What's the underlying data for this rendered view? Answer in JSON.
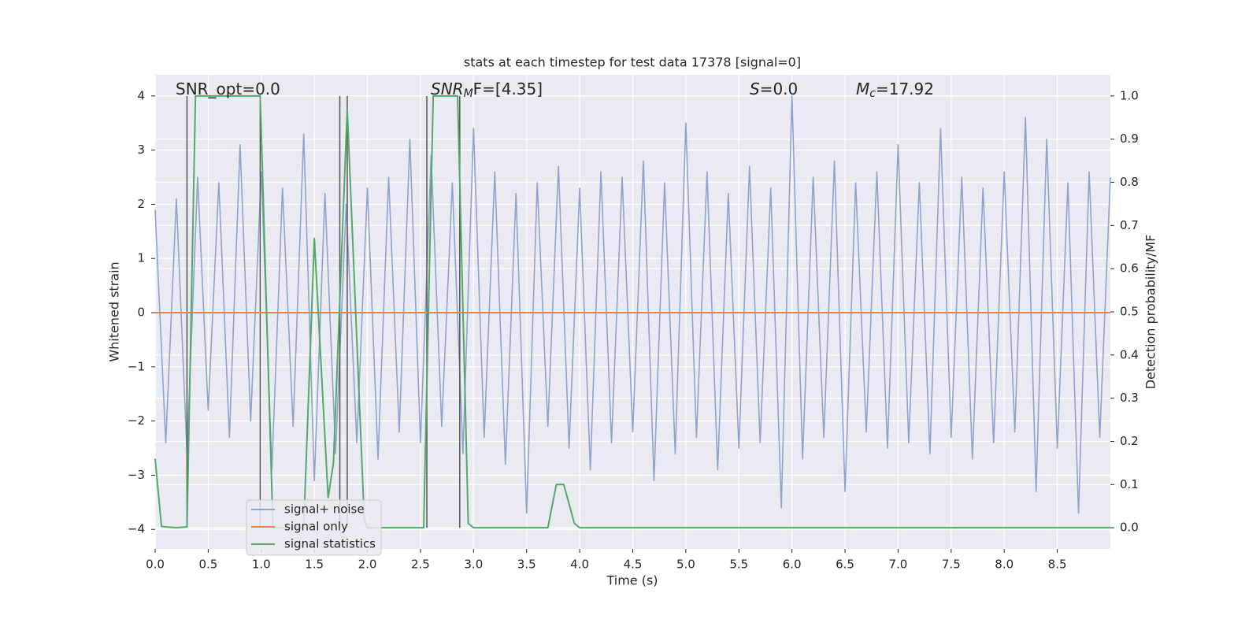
{
  "chart_data": {
    "type": "line",
    "title": "stats at each timestep for test data 17378 [signal=0]",
    "xlabel": "Time (s)",
    "ylabel": "Whitened strain",
    "y2label": "Detection probability/MF",
    "annotations": [
      {
        "text": "SNR_opt=0.0"
      },
      {
        "italic": "SNR",
        "sub": "M",
        "text": "F=[4.35]"
      },
      {
        "italic": "S",
        "text": "=0.0"
      },
      {
        "italic": "M",
        "sub": "c",
        "text": "=17.92"
      }
    ],
    "xlim": [
      0,
      9.0
    ],
    "ylim": [
      -4.36,
      4.39
    ],
    "y2lim": [
      -0.049,
      1.049
    ],
    "xticks": [
      {
        "value": 0,
        "label": "0.0"
      },
      0.5,
      {
        "value": 1,
        "label": "1.0"
      },
      1.5,
      {
        "value": 2,
        "label": "2.0"
      },
      2.5,
      {
        "value": 3,
        "label": "3.0"
      },
      3.5,
      {
        "value": 4,
        "label": "4.0"
      },
      4.5,
      {
        "value": 5,
        "label": "5.0"
      },
      5.5,
      {
        "value": 6,
        "label": "6.0"
      },
      6.5,
      {
        "value": 7,
        "label": "7.0"
      },
      7.5,
      {
        "value": 8,
        "label": "8.0"
      },
      8.5
    ],
    "yticks": [
      {
        "value": -4,
        "label": "−4"
      },
      {
        "value": -3,
        "label": "−3"
      },
      {
        "value": -2,
        "label": "−2"
      },
      {
        "value": -1,
        "label": "−1"
      },
      0,
      1,
      2,
      3,
      4
    ],
    "y2ticks": [
      {
        "value": 0,
        "label": "0.0"
      },
      0.1,
      0.2,
      0.3,
      0.4,
      0.5,
      0.6,
      0.7,
      0.8,
      0.9,
      {
        "value": 1,
        "label": "1.0"
      }
    ],
    "grid": true,
    "legend": "lower left",
    "vlines": [
      0.3,
      0.99,
      1.74,
      1.81,
      2.56,
      2.87
    ],
    "series": [
      {
        "name": "signal+ noise",
        "color": "#8fa3cd",
        "axis": "y",
        "x": [
          0,
          0.1,
          0.2,
          0.3,
          0.4,
          0.5,
          0.6,
          0.7,
          0.8,
          0.9,
          1.0,
          1.1,
          1.2,
          1.3,
          1.4,
          1.5,
          1.6,
          1.7,
          1.8,
          1.9,
          2.0,
          2.1,
          2.2,
          2.3,
          2.4,
          2.5,
          2.6,
          2.7,
          2.8,
          2.9,
          3.0,
          3.1,
          3.2,
          3.3,
          3.4,
          3.5,
          3.6,
          3.7,
          3.8,
          3.9,
          4.0,
          4.1,
          4.2,
          4.3,
          4.4,
          4.5,
          4.6,
          4.7,
          4.8,
          4.9,
          5.0,
          5.1,
          5.2,
          5.3,
          5.4,
          5.5,
          5.6,
          5.7,
          5.8,
          5.9,
          6.0,
          6.1,
          6.2,
          6.3,
          6.4,
          6.5,
          6.6,
          6.7,
          6.8,
          6.9,
          7.0,
          7.1,
          7.2,
          7.3,
          7.4,
          7.5,
          7.6,
          7.7,
          7.8,
          7.9,
          8.0,
          8.1,
          8.2,
          8.3,
          8.4,
          8.5,
          8.6,
          8.7,
          8.8,
          8.9,
          9.0
        ],
        "values": [
          1.9,
          -2.4,
          2.1,
          -2.6,
          2.5,
          -1.8,
          2.4,
          -2.3,
          3.1,
          -2.0,
          2.6,
          -2.9,
          2.3,
          -2.1,
          3.3,
          -3.1,
          2.2,
          -2.6,
          2.0,
          -2.4,
          2.3,
          -2.7,
          2.5,
          -2.2,
          3.2,
          -2.4,
          2.9,
          -2.1,
          2.4,
          -2.6,
          3.4,
          -2.3,
          2.6,
          -2.8,
          2.2,
          -3.7,
          2.4,
          -2.1,
          2.7,
          -2.5,
          2.3,
          -2.9,
          2.6,
          -2.4,
          2.5,
          -2.2,
          2.8,
          -3.1,
          2.4,
          -2.6,
          3.5,
          -2.3,
          2.6,
          -2.9,
          2.2,
          -2.5,
          2.7,
          -2.4,
          2.3,
          -3.6,
          4.0,
          -2.7,
          2.5,
          -2.3,
          2.8,
          -3.3,
          2.4,
          -2.2,
          2.6,
          -2.5,
          3.1,
          -2.4,
          2.4,
          -2.6,
          3.4,
          -2.3,
          2.5,
          -2.7,
          2.3,
          -2.4,
          2.6,
          -2.2,
          3.6,
          -3.3,
          3.2,
          -2.5,
          2.4,
          -3.7,
          2.6,
          -2.3,
          2.5
        ]
      },
      {
        "name": "signal only",
        "color": "#dd8452",
        "axis": "y",
        "x": [
          0,
          9.0
        ],
        "values": [
          0,
          0
        ]
      },
      {
        "name": "signal statistics",
        "color": "#55a868",
        "axis": "y2",
        "x": [
          0,
          0.06,
          0.2,
          0.3,
          0.38,
          0.5,
          0.7,
          0.99,
          1.11,
          1.15,
          1.4,
          1.5,
          1.63,
          1.68,
          1.81,
          1.97,
          2.0,
          2.5,
          2.53,
          2.62,
          2.85,
          2.95,
          3.0,
          3.7,
          3.78,
          3.85,
          3.95,
          4.0,
          9.0
        ],
        "values": [
          0.16,
          0.003,
          0.0,
          0.002,
          1.0,
          1.0,
          1.0,
          1.0,
          0.0,
          0.0,
          0.0,
          0.67,
          0.07,
          0.15,
          0.97,
          0.02,
          0.0,
          0.0,
          0.0,
          1.0,
          1.0,
          0.01,
          0.0,
          0.0,
          0.1,
          0.1,
          0.01,
          0.0,
          0.0
        ]
      }
    ]
  }
}
